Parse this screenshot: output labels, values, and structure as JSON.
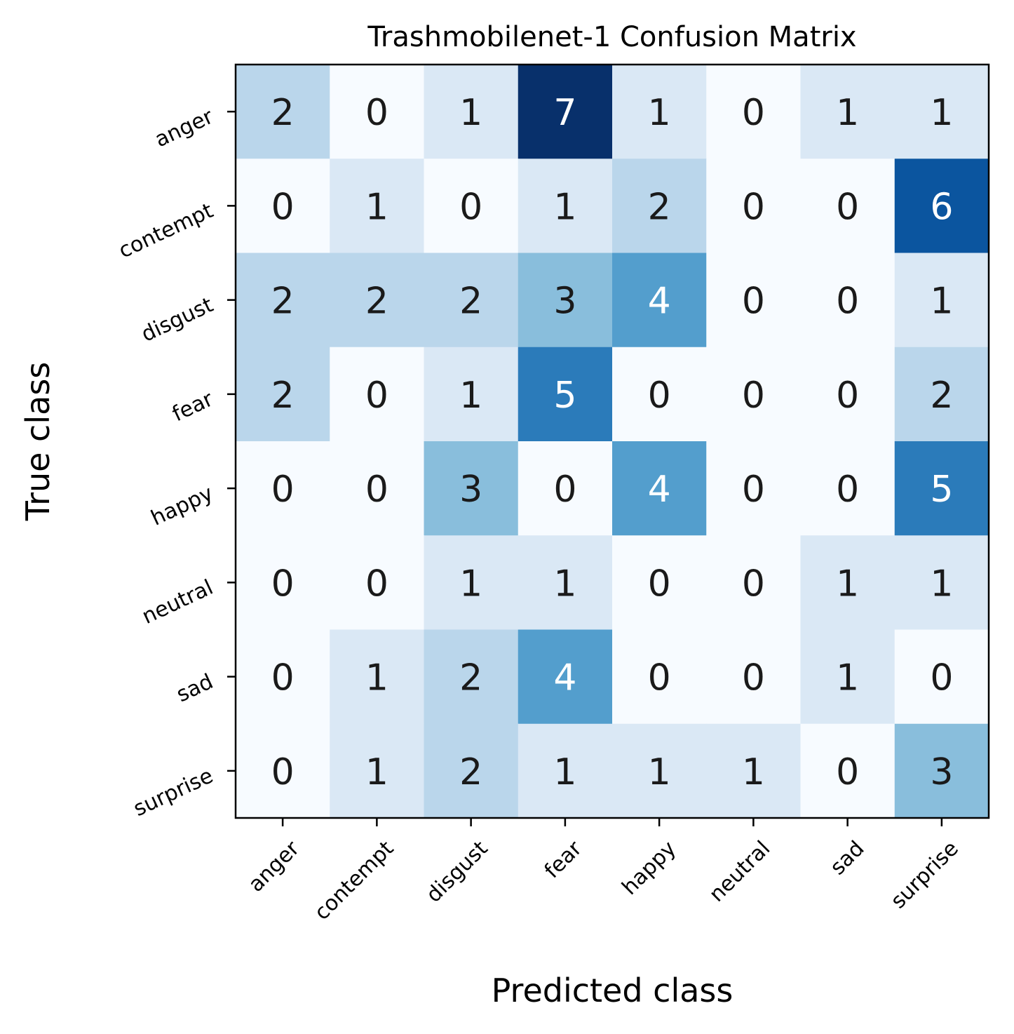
{
  "chart_data": {
    "type": "heatmap",
    "title": "Trashmobilenet-1 Confusion Matrix",
    "xlabel": "Predicted class",
    "ylabel": "True class",
    "x_categories": [
      "anger",
      "contempt",
      "disgust",
      "fear",
      "happy",
      "neutral",
      "sad",
      "surprise"
    ],
    "y_categories": [
      "anger",
      "contempt",
      "disgust",
      "fear",
      "happy",
      "neutral",
      "sad",
      "surprise"
    ],
    "values": [
      [
        2,
        0,
        1,
        7,
        1,
        0,
        1,
        1
      ],
      [
        0,
        1,
        0,
        1,
        2,
        0,
        0,
        6
      ],
      [
        2,
        2,
        2,
        3,
        4,
        0,
        0,
        1
      ],
      [
        2,
        0,
        1,
        5,
        0,
        0,
        0,
        2
      ],
      [
        0,
        0,
        3,
        0,
        4,
        0,
        0,
        5
      ],
      [
        0,
        0,
        1,
        1,
        0,
        0,
        1,
        1
      ],
      [
        0,
        1,
        2,
        4,
        0,
        0,
        1,
        0
      ],
      [
        0,
        1,
        2,
        1,
        1,
        1,
        0,
        3
      ]
    ],
    "colormap": "Blues",
    "vmin": 0,
    "vmax": 7,
    "cell_colors": [
      "#f7fbff",
      "#dae8f5",
      "#bad6eb",
      "#89bedc",
      "#539ecd",
      "#2b7bba",
      "#0b559f",
      "#08306b"
    ],
    "text_colors": {
      "light": "#ffffff",
      "dark": "#1a1a1a"
    },
    "grid": false
  }
}
